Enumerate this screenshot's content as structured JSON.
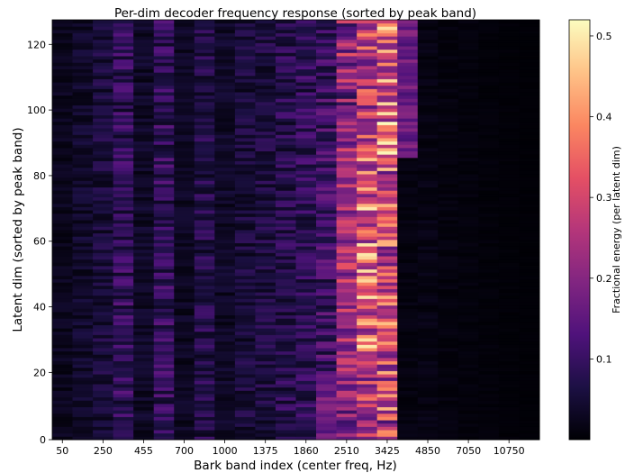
{
  "chart_data": {
    "type": "heatmap",
    "title": "Per-dim decoder frequency response (sorted by peak band)",
    "xlabel": "Bark band index (center freq, Hz)",
    "ylabel": "Latent dim (sorted by peak band)",
    "x_tick_labels": [
      "50",
      "250",
      "455",
      "700",
      "1000",
      "1375",
      "1860",
      "2510",
      "3425",
      "4850",
      "7050",
      "10750"
    ],
    "y_ticks": [
      0,
      20,
      40,
      60,
      80,
      100,
      120
    ],
    "n_bands": 24,
    "n_dims": 128,
    "colormap": "magma",
    "colorbar": {
      "label": "Fractional energy (per latent dim)",
      "ticks": [
        0.1,
        0.2,
        0.3,
        0.4,
        0.5
      ],
      "range": [
        0.0,
        0.52
      ]
    },
    "band_energy_profile": [
      0.025,
      0.04,
      0.055,
      0.09,
      0.035,
      0.09,
      0.03,
      0.07,
      0.035,
      0.055,
      0.06,
      0.075,
      0.085,
      0.105,
      0.2,
      0.235,
      0.28,
      0.012,
      0.015,
      0.01,
      0.008,
      0.006,
      0.004,
      0.003
    ],
    "peak_regions": [
      {
        "dims": [
          0,
          20
        ],
        "peak_band_index": 14,
        "peak_energy": 0.3
      },
      {
        "dims": [
          21,
          85
        ],
        "peak_band_index": 15,
        "peak_energy": 0.5
      },
      {
        "dims": [
          86,
          127
        ],
        "peak_band_index": 16,
        "peak_energy": 0.52
      }
    ]
  }
}
